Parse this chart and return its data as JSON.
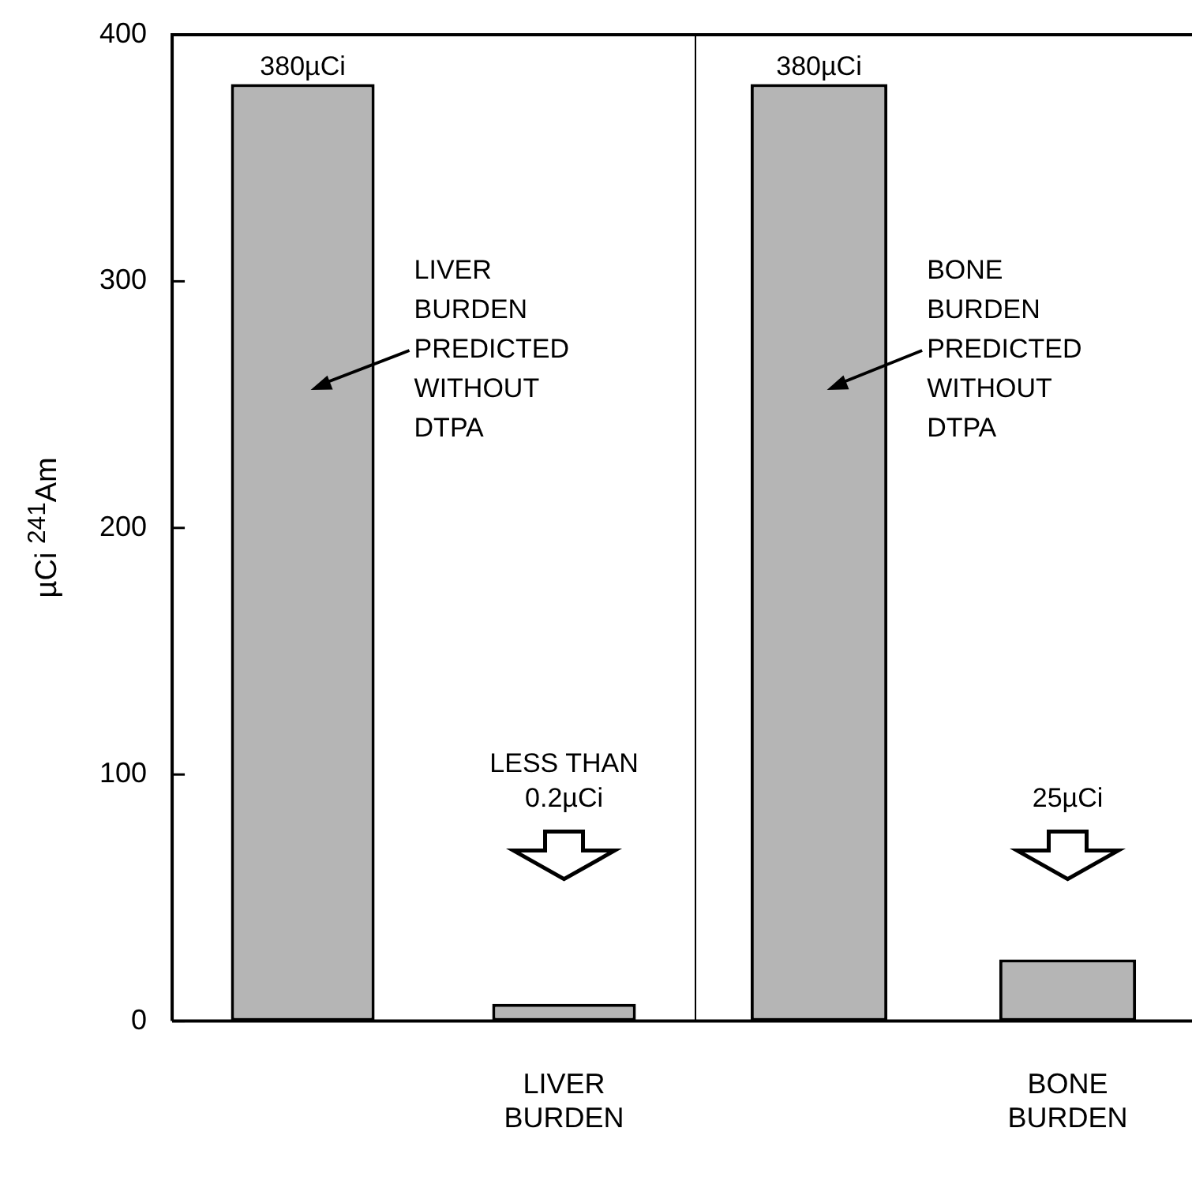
{
  "chart_data": [
    {
      "type": "bar",
      "ylabel": "µCi $^{241}$Am",
      "categories": [
        null,
        "LIVER BURDEN"
      ],
      "values": [
        380,
        7
      ],
      "color": "#b5b5b5",
      "value_labels": [
        "380µCi",
        null
      ],
      "ylim": [
        0,
        400
      ],
      "yticks": [
        0,
        100,
        200,
        300,
        400
      ],
      "annotations": [
        "LIVER\nBURDEN\nPREDICTED\nWITHOUT\nDTPA",
        "LESS THAN\n0.2µCi"
      ]
    },
    {
      "type": "bar",
      "categories": [
        null,
        "BONE BURDEN"
      ],
      "values": [
        380,
        25
      ],
      "color": "#b5b5b5",
      "value_labels": [
        "380µCi",
        null
      ],
      "ylim": [
        0,
        400
      ],
      "yticks": [
        0,
        100,
        200,
        300,
        400
      ],
      "tick_labels": "x",
      "annotations": [
        "BONE\nBURDEN\nPREDICTED\nWITHOUT\nDTPA",
        "25µCi"
      ]
    }
  ]
}
